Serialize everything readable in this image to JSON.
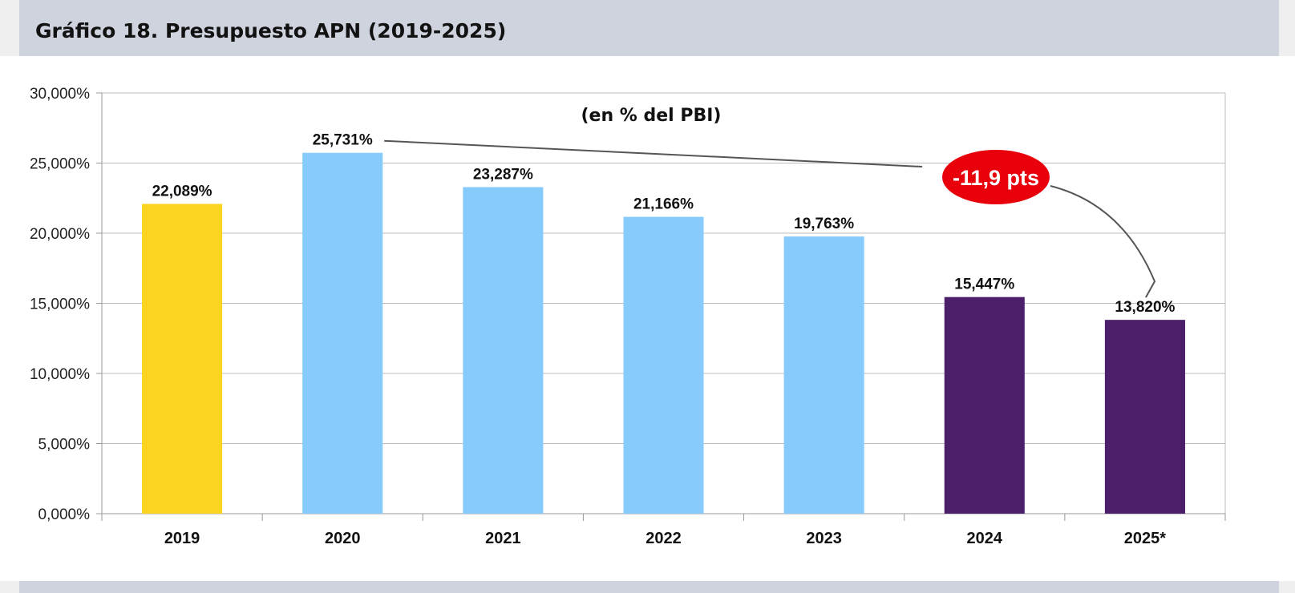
{
  "header": {
    "title": "Gráfico 18. Presupuesto APN (2019-2025)"
  },
  "chart_data": {
    "type": "bar",
    "subtitle": "(en % del PBI)",
    "categories": [
      "2019",
      "2020",
      "2021",
      "2022",
      "2023",
      "2024",
      "2025*"
    ],
    "values": [
      22.089,
      25.731,
      23.287,
      21.166,
      19.763,
      15.447,
      13.82
    ],
    "value_labels": [
      "22,089%",
      "25,731%",
      "23,287%",
      "21,166%",
      "19,763%",
      "15,447%",
      "13,820%"
    ],
    "bar_colors": [
      "#fdd41f",
      "#86cbfb",
      "#86cbfb",
      "#86cbfb",
      "#86cbfb",
      "#4b1f6a",
      "#4b1f6a"
    ],
    "ylim": [
      0,
      30
    ],
    "y_ticks": [
      0,
      5,
      10,
      15,
      20,
      25,
      30
    ],
    "y_tick_labels": [
      "0,000%",
      "5,000%",
      "10,000%",
      "15,000%",
      "20,000%",
      "25,000%",
      "30,000%"
    ],
    "xlabel": "",
    "ylabel": "",
    "grid": true,
    "legend": false,
    "annotation": {
      "text": "-11,9 pts",
      "from_category": "2020",
      "to_category": "2025*",
      "color": "#e8000b"
    }
  }
}
